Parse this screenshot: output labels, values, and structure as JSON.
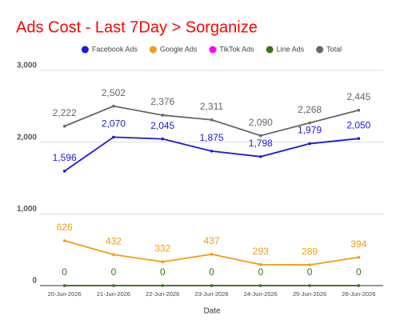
{
  "chart_data": {
    "type": "line",
    "title": "Ads Cost - Last 7Day > Sorganize",
    "x_label": "Date",
    "categories": [
      "20-Jun-2026",
      "21-Jun-2026",
      "22-Jun-2026",
      "23-Jun-2026",
      "24-Jun-2026",
      "25-Jun-2026",
      "26-Jun-2026"
    ],
    "series": [
      {
        "name": "Facebook Ads",
        "color": "#1a1ad6",
        "values": [
          1596,
          2070,
          2045,
          1875,
          1798,
          1979,
          2050
        ],
        "value_labels": [
          "1,596",
          "2,070",
          "2,045",
          "1,875",
          "1,798",
          "1,979",
          "2,050"
        ],
        "data_labels": true
      },
      {
        "name": "Google Ads",
        "color": "#f39c12",
        "values": [
          626,
          432,
          332,
          437,
          293,
          289,
          394
        ],
        "data_labels": true
      },
      {
        "name": "TikTok Ads",
        "color": "#ff00ff",
        "values": [
          0,
          0,
          0,
          0,
          0,
          0,
          0
        ],
        "data_labels": false
      },
      {
        "name": "Line Ads",
        "color": "#38761d",
        "values": [
          0,
          0,
          0,
          0,
          0,
          0,
          0
        ],
        "data_labels": true
      },
      {
        "name": "Total",
        "color": "#666666",
        "values": [
          2222,
          2502,
          2376,
          2311,
          2090,
          2268,
          2445
        ],
        "value_labels": [
          "2,222",
          "2,502",
          "2,376",
          "2,311",
          "2,090",
          "2,268",
          "2,445"
        ],
        "data_labels": true
      }
    ],
    "draw_order": [
      4,
      0,
      1,
      2,
      3
    ],
    "ylim": [
      0,
      3000
    ],
    "yticks": [
      0,
      {
        "value": 1000,
        "label": "1,000"
      },
      {
        "value": 2000,
        "label": "2,000"
      },
      {
        "value": 3000,
        "label": "3,000"
      }
    ],
    "grid": true,
    "title_color": "#ff0000",
    "legend": "top"
  }
}
